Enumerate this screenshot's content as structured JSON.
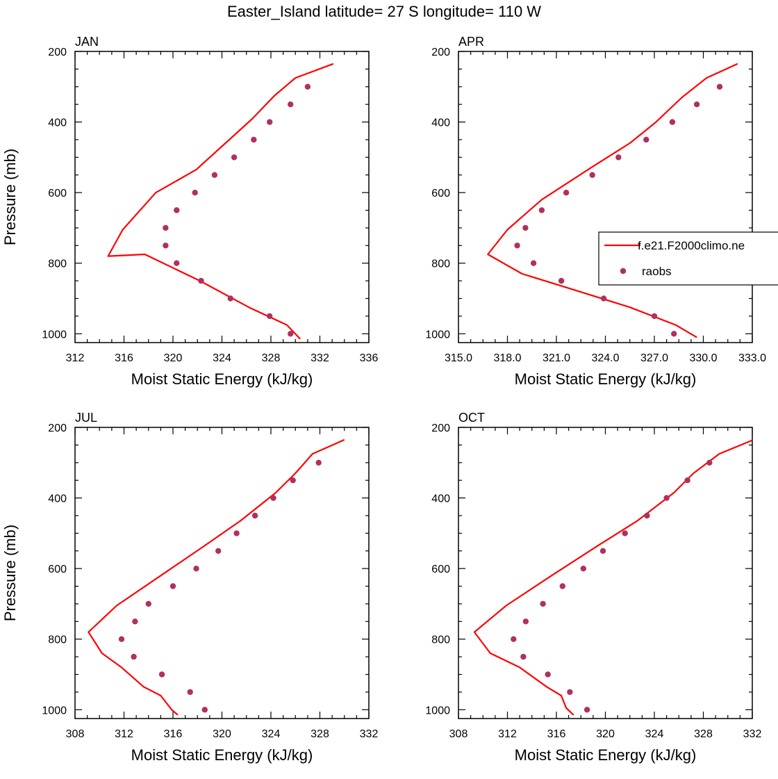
{
  "title": "Easter_Island  latitude= 27 S longitude= 110 W",
  "colors": {
    "model": "#ff0000",
    "obs": "#b03060"
  },
  "legend": {
    "model_label": "f.e21.F2000climo.ne",
    "obs_label": "raobs"
  },
  "chart_data": [
    {
      "type": "line",
      "panel": "JAN",
      "title": "JAN",
      "xlabel": "Moist Static Energy (kJ/kg)",
      "ylabel": "Pressure (mb)",
      "xlim": [
        312,
        336
      ],
      "ylim": [
        1025,
        200
      ],
      "xticks": [
        312,
        316,
        320,
        324,
        328,
        332,
        336
      ],
      "xtick_labels": [
        "312",
        "316",
        "320",
        "324",
        "328",
        "332",
        "336"
      ],
      "yticks": [
        200,
        400,
        600,
        800,
        1000
      ],
      "ytick_labels": [
        "200",
        "400",
        "600",
        "800",
        "1000"
      ],
      "series": [
        {
          "name": "f.e21.F2000climo.ne",
          "style": "line",
          "x": [
            330.4,
            329.3,
            326.2,
            322.2,
            317.7,
            314.7,
            315.9,
            318.6,
            321.9,
            324.6,
            326.5,
            328.3,
            330.0,
            333.1
          ],
          "y": [
            1015,
            975,
            925,
            850,
            775,
            780,
            705,
            600,
            535,
            450,
            390,
            325,
            275,
            235
          ]
        },
        {
          "name": "raobs",
          "style": "marker",
          "x": [
            329.6,
            327.9,
            324.7,
            322.3,
            320.3,
            319.4,
            319.4,
            320.3,
            321.8,
            323.4,
            325.0,
            326.6,
            327.9,
            329.6,
            331.0
          ],
          "y": [
            1000,
            950,
            900,
            850,
            800,
            750,
            700,
            650,
            600,
            550,
            500,
            450,
            400,
            350,
            300
          ]
        }
      ]
    },
    {
      "type": "line",
      "panel": "APR",
      "title": "APR",
      "xlabel": "Moist Static Energy (kJ/kg)",
      "ylabel": "",
      "xlim": [
        315,
        333
      ],
      "ylim": [
        1025,
        200
      ],
      "xticks": [
        315,
        318,
        321,
        324,
        327,
        330,
        333
      ],
      "xtick_labels": [
        "315.0",
        "318.0",
        "321.0",
        "324.0",
        "327.0",
        "330.0",
        "333.0"
      ],
      "yticks": [
        200,
        400,
        600,
        800,
        1000
      ],
      "ytick_labels": [
        "200",
        "400",
        "600",
        "800",
        "1000"
      ],
      "legend": "right-middle",
      "series": [
        {
          "name": "f.e21.F2000climo.ne",
          "style": "line",
          "x": [
            329.6,
            328.3,
            325.5,
            321.7,
            318.9,
            316.8,
            318.0,
            320.1,
            323.1,
            325.5,
            327.1,
            328.7,
            330.2,
            332.1
          ],
          "y": [
            1010,
            975,
            925,
            870,
            830,
            775,
            705,
            620,
            530,
            460,
            400,
            330,
            275,
            235
          ]
        },
        {
          "name": "raobs",
          "style": "marker",
          "x": [
            328.2,
            327.0,
            323.9,
            321.3,
            319.6,
            318.6,
            319.1,
            320.1,
            321.6,
            323.2,
            324.8,
            326.5,
            328.1,
            329.6,
            331.0
          ],
          "y": [
            1000,
            950,
            900,
            850,
            800,
            750,
            700,
            650,
            600,
            550,
            500,
            450,
            400,
            350,
            300
          ]
        }
      ]
    },
    {
      "type": "line",
      "panel": "JUL",
      "title": "JUL",
      "xlabel": "Moist Static Energy (kJ/kg)",
      "ylabel": "Pressure (mb)",
      "xlim": [
        308,
        332
      ],
      "ylim": [
        1025,
        200
      ],
      "xticks": [
        308,
        312,
        316,
        320,
        324,
        328,
        332
      ],
      "xtick_labels": [
        "308",
        "312",
        "316",
        "320",
        "324",
        "328",
        "332"
      ],
      "yticks": [
        200,
        400,
        600,
        800,
        1000
      ],
      "ytick_labels": [
        "200",
        "400",
        "600",
        "800",
        "1000"
      ],
      "series": [
        {
          "name": "f.e21.F2000climo.ne",
          "style": "line",
          "x": [
            316.4,
            315.9,
            315.0,
            313.6,
            311.8,
            310.2,
            309.1,
            311.4,
            315.0,
            318.6,
            321.5,
            324.4,
            326.0,
            327.4,
            330.0
          ],
          "y": [
            1015,
            1000,
            960,
            935,
            880,
            840,
            780,
            705,
            620,
            535,
            465,
            385,
            330,
            275,
            235
          ]
        },
        {
          "name": "raobs",
          "style": "marker",
          "x": [
            318.6,
            317.4,
            315.1,
            312.8,
            311.8,
            312.9,
            314.0,
            316.0,
            317.9,
            319.7,
            321.2,
            322.7,
            324.2,
            325.8,
            327.9
          ],
          "y": [
            1000,
            950,
            900,
            850,
            800,
            750,
            700,
            650,
            600,
            550,
            500,
            450,
            400,
            350,
            300
          ]
        }
      ]
    },
    {
      "type": "line",
      "panel": "OCT",
      "title": "OCT",
      "xlabel": "Moist Static Energy (kJ/kg)",
      "ylabel": "",
      "xlim": [
        308,
        332
      ],
      "ylim": [
        1025,
        200
      ],
      "xticks": [
        308,
        312,
        316,
        320,
        324,
        328,
        332
      ],
      "xtick_labels": [
        "308",
        "312",
        "316",
        "320",
        "324",
        "328",
        "332"
      ],
      "yticks": [
        200,
        400,
        600,
        800,
        1000
      ],
      "ytick_labels": [
        "200",
        "400",
        "600",
        "800",
        "1000"
      ],
      "series": [
        {
          "name": "f.e21.F2000climo.ne",
          "style": "line",
          "x": [
            317.4,
            316.8,
            316.4,
            315.2,
            313.0,
            310.6,
            309.3,
            311.9,
            315.6,
            319.4,
            322.6,
            325.6,
            327.2,
            329.3,
            332.1
          ],
          "y": [
            1015,
            995,
            960,
            935,
            880,
            840,
            780,
            705,
            620,
            535,
            465,
            385,
            330,
            275,
            235
          ]
        },
        {
          "name": "raobs",
          "style": "marker",
          "x": [
            318.5,
            317.1,
            315.3,
            313.3,
            312.5,
            313.5,
            314.9,
            316.5,
            318.2,
            319.8,
            321.6,
            323.4,
            325.0,
            326.7,
            328.5
          ],
          "y": [
            1000,
            950,
            900,
            850,
            800,
            750,
            700,
            650,
            600,
            550,
            500,
            450,
            400,
            350,
            300
          ]
        }
      ]
    }
  ]
}
